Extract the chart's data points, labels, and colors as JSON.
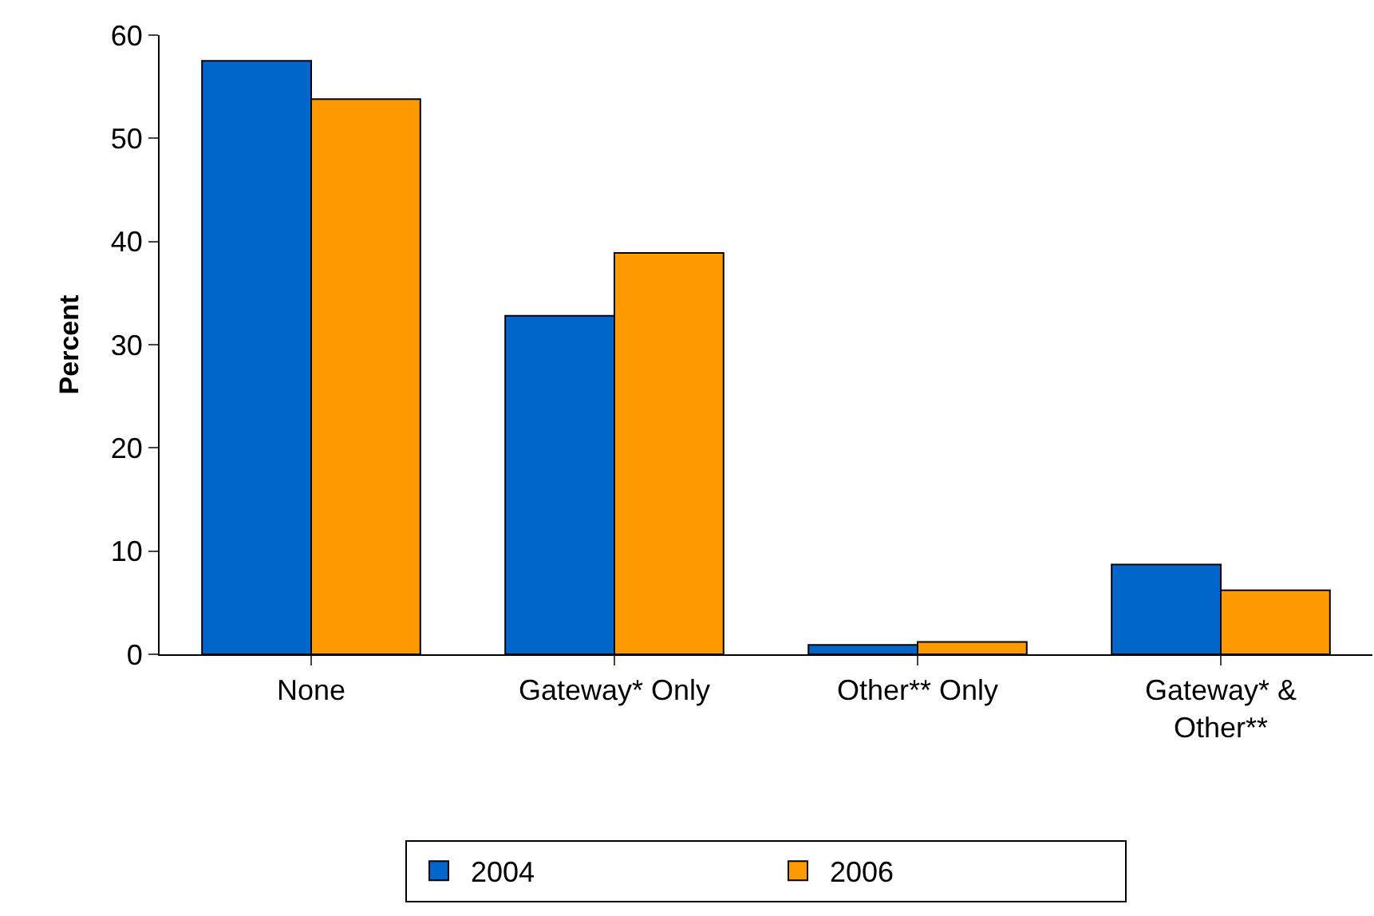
{
  "chart_data": {
    "type": "bar",
    "ylabel": "Percent",
    "categories": [
      "None",
      "Gateway* Only",
      "Other** Only",
      "Gateway* &\nOther**"
    ],
    "series": [
      {
        "name": "2004",
        "color": "#0066cc",
        "values": [
          57.5,
          32.8,
          0.9,
          8.7
        ]
      },
      {
        "name": "2006",
        "color": "#ff9900",
        "values": [
          53.8,
          38.9,
          1.2,
          6.2
        ]
      }
    ],
    "ylim": [
      0,
      60
    ],
    "yticks": [
      0,
      10,
      20,
      30,
      40,
      50,
      60
    ],
    "grid": false,
    "legend": "bottom"
  }
}
